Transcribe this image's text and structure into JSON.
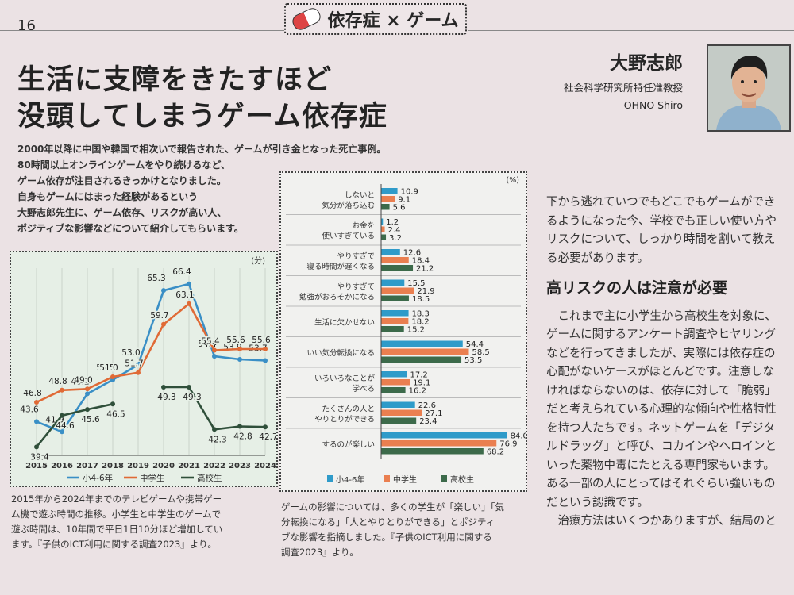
{
  "page_number": "16",
  "header": {
    "title": "依存症 × ゲーム"
  },
  "title_lines": [
    "生活に支障をきたすほど",
    "没頭してしまうゲーム依存症"
  ],
  "lead_lines": [
    "2000年以降に中国や韓国で相次いで報告された、ゲームが引き金となった死亡事例。",
    "80時間以上オンラインゲームをやり続けるなど、",
    "ゲーム依存が注目されるきっかけとなりました。",
    "自身もゲームにはまった経験があるという",
    "大野志郎先生に、ゲーム依存、リスクが高い人、",
    "ポジティブな影響などについて紹介してもらいます。"
  ],
  "author": {
    "name": "大野志郎",
    "affiliation": "社会科学研究所特任准教授",
    "roman": "OHNO Shiro"
  },
  "chart_data": [
    {
      "type": "line",
      "unit": "(分)",
      "x": [
        "2015",
        "2016",
        "2017",
        "2018",
        "2019",
        "2020",
        "2021",
        "2022",
        "2023",
        "2024"
      ],
      "ylim": [
        38,
        69
      ],
      "legend_position": "bottom",
      "series": [
        {
          "name": "小4-6年",
          "color": "#3a8fc6",
          "values": [
            43.6,
            41.9,
            48.2,
            50.5,
            53.0,
            65.3,
            66.4,
            54.4,
            53.9,
            53.7
          ]
        },
        {
          "name": "中学生",
          "color": "#e06a36",
          "values": [
            46.8,
            48.8,
            49.0,
            51.0,
            51.7,
            59.7,
            63.1,
            55.4,
            55.6,
            55.6
          ]
        },
        {
          "name": "高校生",
          "color": "#2f4f3a",
          "values": [
            39.4,
            44.6,
            45.6,
            46.5,
            null,
            49.3,
            49.3,
            42.3,
            42.8,
            42.7
          ]
        }
      ],
      "value_labels": {
        "小4-6年": [
          "43.6",
          "41.9",
          "48.2",
          "50.5",
          "53.0",
          "65.3",
          "66.4",
          "54.4",
          "53.9",
          "53.7"
        ],
        "中学生": [
          "46.8",
          "48.8",
          "49.0",
          "51.0",
          "51.7",
          "59.7",
          "63.1",
          "55.4",
          "55.6",
          "55.6"
        ],
        "高校生": [
          "39.4",
          "44.6",
          "45.6",
          "46.5",
          "",
          "49.3",
          "49.3",
          "42.3",
          "42.8",
          "42.7"
        ]
      }
    },
    {
      "type": "bar",
      "orientation": "horizontal",
      "unit": "(%)",
      "xlim": [
        0,
        90
      ],
      "legend_position": "bottom",
      "categories": [
        [
          "しないと",
          "気分が落ち込む"
        ],
        [
          "お金を",
          "使いすぎている"
        ],
        [
          "やりすぎで",
          "寝る時間が遅くなる"
        ],
        [
          "やりすぎて",
          "勉強がおろそかになる"
        ],
        [
          "生活に欠かせない"
        ],
        [
          "いい気分転換になる"
        ],
        [
          "いろいろなことが",
          "学べる"
        ],
        [
          "たくさんの人と",
          "やりとりができる"
        ],
        [
          "するのが楽しい"
        ]
      ],
      "series": [
        {
          "name": "小4-6年",
          "color": "#2f9bc9",
          "values": [
            10.9,
            1.2,
            12.6,
            15.5,
            18.3,
            54.4,
            17.2,
            22.6,
            84.0
          ],
          "labels": [
            "10.9",
            "1.2",
            "12.6",
            "15.5",
            "18.3",
            "54.4",
            "17.2",
            "22.6",
            "84.0"
          ]
        },
        {
          "name": "中学生",
          "color": "#ea7f50",
          "values": [
            9.1,
            2.4,
            18.4,
            21.9,
            18.2,
            58.5,
            19.1,
            27.1,
            76.9
          ],
          "labels": [
            "9.1",
            "2.4",
            "18.4",
            "21.9",
            "18.2",
            "58.5",
            "19.1",
            "27.1",
            "76.9"
          ]
        },
        {
          "name": "高校生",
          "color": "#3c6a4a",
          "values": [
            5.6,
            3.2,
            21.2,
            18.5,
            15.2,
            53.5,
            16.2,
            23.4,
            68.2
          ],
          "labels": [
            "5.6",
            "3.2",
            "21.2",
            "18.5",
            "15.2",
            "53.5",
            "16.2",
            "23.4",
            "68.2"
          ]
        }
      ]
    }
  ],
  "caption_left_lines": [
    "2015年から2024年までのテレビゲームや携帯ゲー",
    "ム機で遊ぶ時間の推移。小学生と中学生のゲームで",
    "遊ぶ時間は、10年間で平日1日10分ほど増加してい",
    "ます。『子供のICT利用に関する調査2023』より。"
  ],
  "caption_right_lines": [
    "ゲームの影響については、多くの学生が「楽しい」「気",
    "分転換になる」「人とやりとりができる」とポジティ",
    "ブな影響を指摘しました。『子供のICT利用に関する",
    "調査2023』より。"
  ],
  "body_intro_lines": [
    "下から逃れていつでもどこでもゲームができ",
    "るようになった今、学校でも正しい使い方や",
    "リスクについて、しっかり時間を割いて教え",
    "る必要があります。"
  ],
  "body_heading": "高リスクの人は注意が必要",
  "body_lines": [
    "　これまで主に小学生から高校生を対象に、",
    "ゲームに関するアンケート調査やヒヤリング",
    "などを行ってきましたが、実際には依存症の",
    "心配がないケースがほとんどです。注意しな",
    "ければならないのは、依存に対して「脆弱」",
    "だと考えられている心理的な傾向や性格特性",
    "を持つ人たちです。ネットゲームを「デジタ",
    "ルドラッグ」と呼び、コカインやヘロインと",
    "いった薬物中毒にたとえる専門家もいます。",
    "ある一部の人にとってはそれぐらい強いもの",
    "だという認識です。",
    "　治療方法はいくつかありますが、結局のと"
  ],
  "colors": {
    "background": "#ebe2e4",
    "line_panel": "#e6efe6",
    "bar_panel": "#f1f1ef"
  }
}
